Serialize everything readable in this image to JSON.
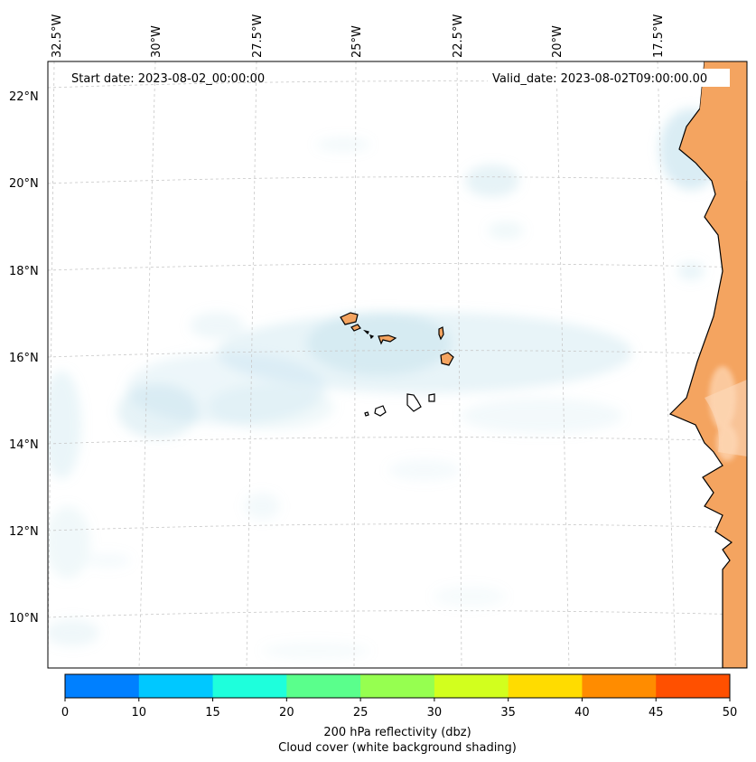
{
  "header": {
    "start_date": "Start date: 2023-08-02_00:00:00",
    "valid_date": "Valid_date: 2023-08-02T09:00:00.00"
  },
  "longitude_labels": [
    "32.5°W",
    "30°W",
    "27.5°W",
    "25°W",
    "22.5°W",
    "20°W",
    "17.5°W"
  ],
  "latitude_labels": [
    "22°N",
    "20°N",
    "18°N",
    "16°N",
    "14°N",
    "12°N",
    "10°N"
  ],
  "colorbar": {
    "ticks": [
      "0",
      "10",
      "15",
      "20",
      "25",
      "30",
      "35",
      "40",
      "45",
      "50"
    ],
    "colors": [
      "#0080ff",
      "#00c8ff",
      "#1effdc",
      "#5aff8c",
      "#96ff50",
      "#d2ff1e",
      "#ffdc00",
      "#ff8c00",
      "#ff5000"
    ],
    "label_line1": "200 hPa reflectivity (dbz)",
    "label_line2": "Cloud cover (white background shading)"
  },
  "colors": {
    "land_fill": "#f4a460",
    "cloud_shade": "#add8e6",
    "gridline": "#c8c8c8",
    "coastline": "#000000"
  }
}
